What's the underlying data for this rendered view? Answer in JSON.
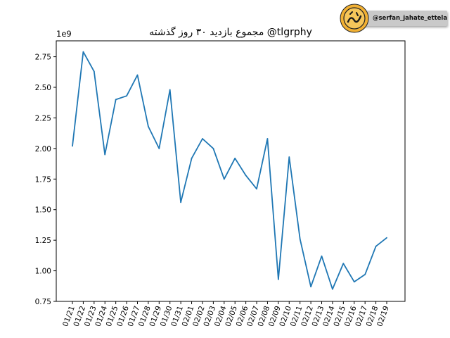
{
  "chart_data": {
    "type": "line",
    "title": "مجموع بازدید ۳۰ روز گذشته @tlgrphy",
    "xlabel": "",
    "ylabel": "",
    "y_exponent_label": "1e9",
    "ylim": [
      0.75,
      2.88
    ],
    "yticks": [
      0.75,
      1.0,
      1.25,
      1.5,
      1.75,
      2.0,
      2.25,
      2.5,
      2.75
    ],
    "ytick_labels": [
      "0.75",
      "1.00",
      "1.25",
      "1.50",
      "1.75",
      "2.00",
      "2.25",
      "2.50",
      "2.75"
    ],
    "grid": false,
    "legend": "none",
    "line_color": "#1f77b4",
    "categories": [
      "01/21",
      "01/22",
      "01/23",
      "01/24",
      "01/25",
      "01/26",
      "01/27",
      "01/28",
      "01/29",
      "01/30",
      "01/31",
      "02/01",
      "02/02",
      "02/03",
      "02/04",
      "02/05",
      "02/06",
      "02/07",
      "02/08",
      "02/09",
      "02/10",
      "02/11",
      "02/12",
      "02/13",
      "02/14",
      "02/15",
      "02/16",
      "02/17",
      "02/18",
      "02/19"
    ],
    "series": [
      {
        "values": [
          2.02,
          2.79,
          2.63,
          1.95,
          2.4,
          2.43,
          2.6,
          2.18,
          2.0,
          2.48,
          1.56,
          1.92,
          2.08,
          2.0,
          1.75,
          1.92,
          1.78,
          1.67,
          2.08,
          0.93,
          1.93,
          1.26,
          0.87,
          1.12,
          0.85,
          1.06,
          0.91,
          0.97,
          1.2,
          1.27
        ]
      }
    ]
  },
  "watermark": {
    "handle": "@serfan_jahate_ettela",
    "logo_text": "اطلاع",
    "logo_color": "#f2b134",
    "bar_color": "#c9c9c9"
  }
}
